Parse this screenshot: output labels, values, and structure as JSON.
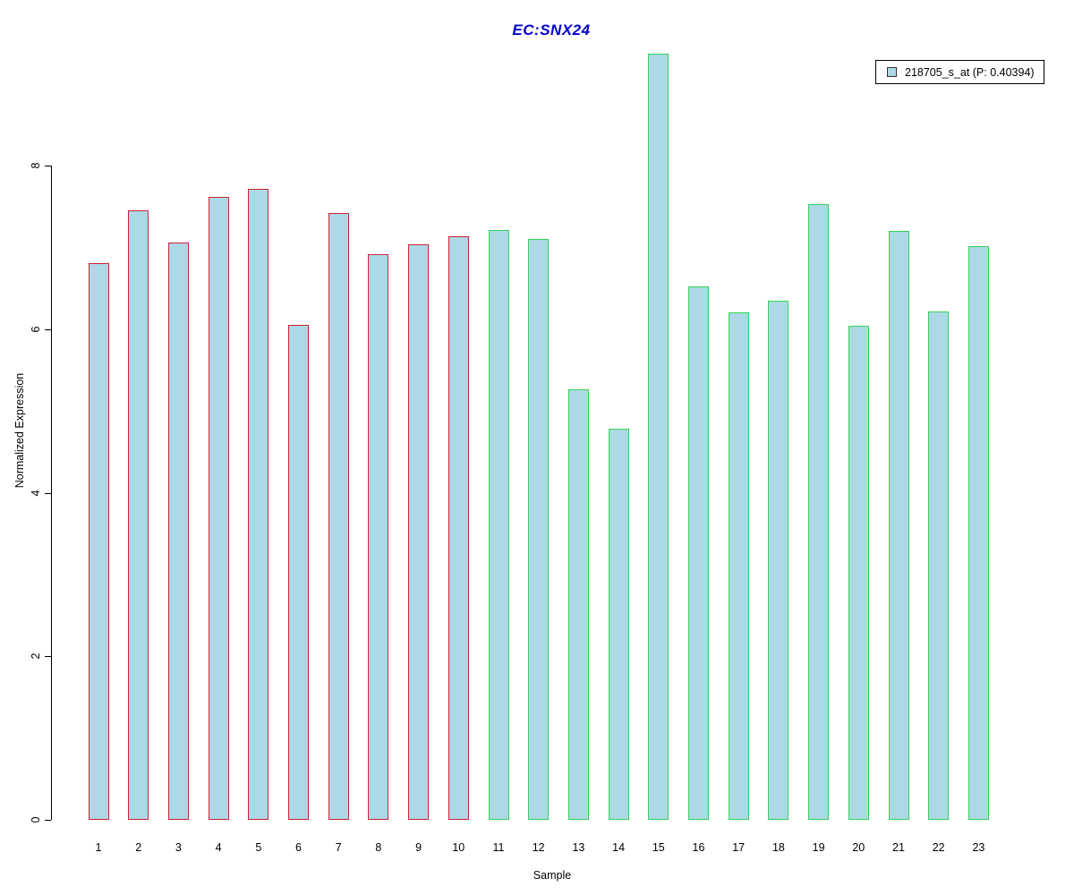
{
  "figure": {
    "title": "EC:SNX24",
    "title_color": "#0000cc"
  },
  "legend": {
    "label": "218705_s_at (P: 0.40394)",
    "swatch_fill": "#add8e6",
    "swatch_border": "#333333",
    "box_border": "#000000"
  },
  "chart_data": {
    "type": "bar",
    "title": "EC:SNX24",
    "xlabel": "Sample",
    "ylabel": "Normalized Expression",
    "categories": [
      "1",
      "2",
      "3",
      "4",
      "5",
      "6",
      "7",
      "8",
      "9",
      "10",
      "11",
      "12",
      "13",
      "14",
      "15",
      "16",
      "17",
      "18",
      "19",
      "20",
      "21",
      "22",
      "23"
    ],
    "series": [
      {
        "name": "218705_s_at (P: 0.40394)",
        "values": [
          6.81,
          7.45,
          7.06,
          7.62,
          7.72,
          6.05,
          7.42,
          6.92,
          7.04,
          7.13,
          7.21,
          7.1,
          5.26,
          4.78,
          9.37,
          6.52,
          6.2,
          6.35,
          7.53,
          6.04,
          7.2,
          6.22,
          7.02
        ]
      }
    ],
    "bar_fill": "#add8e6",
    "bar_border_colors": [
      "#cc2233",
      "#cc2233",
      "#cc2233",
      "#cc2233",
      "#cc2233",
      "#cc2233",
      "#cc2233",
      "#cc2233",
      "#cc2233",
      "#cc2233",
      "#33d355",
      "#33d355",
      "#33d355",
      "#33d355",
      "#33d355",
      "#33d355",
      "#33d355",
      "#33d355",
      "#33d355",
      "#33d355",
      "#33d355",
      "#33d355",
      "#33d355"
    ],
    "group_border_colors": {
      "samples_1_to_10": "#cc2233",
      "samples_11_to_23": "#33d355"
    },
    "ylim": [
      0,
      9.4
    ],
    "yticks": [
      0,
      2,
      4,
      6,
      8
    ],
    "grid": false,
    "legend_position": "top-right",
    "axis_color": "#000000"
  }
}
